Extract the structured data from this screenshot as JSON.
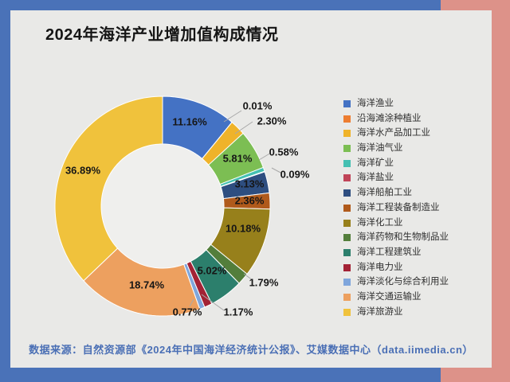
{
  "title": "2024年海洋产业增加值构成情况",
  "source": "数据来源：自然资源部《2024年中国海洋经济统计公报》、艾媒数据中心（data.iimedia.cn）",
  "colors": {
    "frame_blue": "#4A72B8",
    "frame_salmon": "#DD9289",
    "card_bg": "#E9E9E7",
    "hole_bg": "#EFEFED",
    "title_text": "#151515",
    "source_text": "#4A6FB5",
    "pct_label_text": "#161616",
    "legend_text": "#2F2F2F",
    "callout_line": "#A8A8A8",
    "slice_border": "#FFFFFF"
  },
  "chart_data": {
    "type": "pie",
    "subtype": "donut",
    "title": "2024年海洋产业增加值构成情况",
    "unit": "%",
    "start_angle_deg": -90,
    "direction": "clockwise",
    "legend_position": "right",
    "items": [
      {
        "label": "海洋渔业",
        "value": 11.16,
        "pct_label": "11.16%",
        "color": "#4472C4"
      },
      {
        "label": "沿海滩涂种植业",
        "value": 0.01,
        "pct_label": "0.01%",
        "color": "#ED7D31"
      },
      {
        "label": "海洋水产品加工业",
        "value": 2.3,
        "pct_label": "2.30%",
        "color": "#EFB32A"
      },
      {
        "label": "海洋油气业",
        "value": 5.81,
        "pct_label": "5.81%",
        "color": "#7CBE53"
      },
      {
        "label": "海洋矿业",
        "value": 0.58,
        "pct_label": "0.58%",
        "color": "#45C0B2"
      },
      {
        "label": "海洋盐业",
        "value": 0.09,
        "pct_label": "0.09%",
        "color": "#C04458"
      },
      {
        "label": "海洋船舶工业",
        "value": 3.13,
        "pct_label": "3.13%",
        "color": "#2E4E80"
      },
      {
        "label": "海洋工程装备制造业",
        "value": 2.36,
        "pct_label": "2.36%",
        "color": "#B05A1B"
      },
      {
        "label": "海洋化工业",
        "value": 10.18,
        "pct_label": "10.18%",
        "color": "#97801B"
      },
      {
        "label": "海洋药物和生物制品业",
        "value": 1.79,
        "pct_label": "1.79%",
        "color": "#537E3B"
      },
      {
        "label": "海洋工程建筑业",
        "value": 5.02,
        "pct_label": "5.02%",
        "color": "#2C7F6C"
      },
      {
        "label": "海洋电力业",
        "value": 1.17,
        "pct_label": "1.17%",
        "color": "#A32235"
      },
      {
        "label": "海洋淡化与综合利用业",
        "value": 0.77,
        "pct_label": "0.77%",
        "color": "#7FA6DC"
      },
      {
        "label": "海洋交通运输业",
        "value": 18.74,
        "pct_label": "18.74%",
        "color": "#EDA05F"
      },
      {
        "label": "海洋旅游业",
        "value": 36.89,
        "pct_label": "36.89%",
        "color": "#F0C23C"
      }
    ]
  }
}
